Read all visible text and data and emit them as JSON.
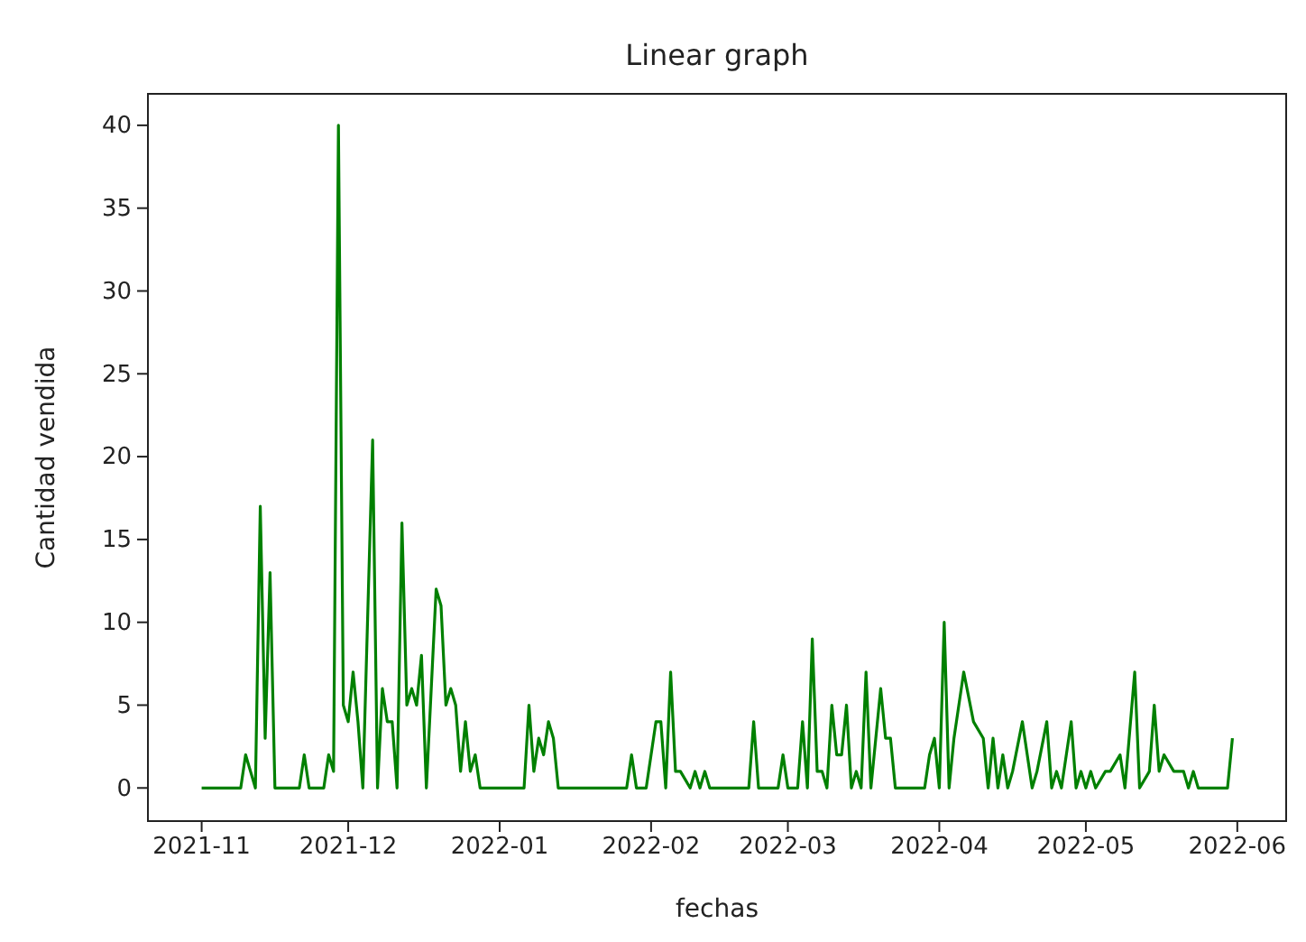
{
  "chart_data": {
    "type": "line",
    "title": "Linear graph",
    "xlabel": "fechas",
    "ylabel": "Cantidad vendida",
    "x": [
      "2021-11-01",
      "2021-11-09",
      "2021-11-10",
      "2021-11-11",
      "2021-11-12",
      "2021-11-13",
      "2021-11-14",
      "2021-11-15",
      "2021-11-16",
      "2021-11-21",
      "2021-11-22",
      "2021-11-23",
      "2021-11-26",
      "2021-11-27",
      "2021-11-28",
      "2021-11-29",
      "2021-11-30",
      "2021-12-01",
      "2021-12-02",
      "2021-12-03",
      "2021-12-04",
      "2021-12-06",
      "2021-12-07",
      "2021-12-08",
      "2021-12-09",
      "2021-12-10",
      "2021-12-11",
      "2021-12-12",
      "2021-12-13",
      "2021-12-14",
      "2021-12-15",
      "2021-12-16",
      "2021-12-17",
      "2021-12-19",
      "2021-12-20",
      "2021-12-21",
      "2021-12-22",
      "2021-12-23",
      "2021-12-24",
      "2021-12-25",
      "2021-12-26",
      "2021-12-27",
      "2021-12-28",
      "2022-01-06",
      "2022-01-07",
      "2022-01-08",
      "2022-01-09",
      "2022-01-10",
      "2022-01-11",
      "2022-01-12",
      "2022-01-13",
      "2022-01-27",
      "2022-01-28",
      "2022-01-29",
      "2022-01-31",
      "2022-02-01",
      "2022-02-02",
      "2022-02-03",
      "2022-02-04",
      "2022-02-05",
      "2022-02-06",
      "2022-02-07",
      "2022-02-09",
      "2022-02-10",
      "2022-02-11",
      "2022-02-12",
      "2022-02-13",
      "2022-02-21",
      "2022-02-22",
      "2022-02-23",
      "2022-02-27",
      "2022-02-28",
      "2022-03-01",
      "2022-03-03",
      "2022-03-04",
      "2022-03-05",
      "2022-03-06",
      "2022-03-07",
      "2022-03-08",
      "2022-03-09",
      "2022-03-10",
      "2022-03-11",
      "2022-03-12",
      "2022-03-13",
      "2022-03-14",
      "2022-03-15",
      "2022-03-16",
      "2022-03-17",
      "2022-03-18",
      "2022-03-20",
      "2022-03-21",
      "2022-03-22",
      "2022-03-23",
      "2022-03-29",
      "2022-03-30",
      "2022-03-31",
      "2022-04-01",
      "2022-04-02",
      "2022-04-03",
      "2022-04-04",
      "2022-04-06",
      "2022-04-08",
      "2022-04-10",
      "2022-04-11",
      "2022-04-12",
      "2022-04-13",
      "2022-04-14",
      "2022-04-15",
      "2022-04-16",
      "2022-04-18",
      "2022-04-20",
      "2022-04-21",
      "2022-04-23",
      "2022-04-24",
      "2022-04-25",
      "2022-04-26",
      "2022-04-28",
      "2022-04-29",
      "2022-04-30",
      "2022-05-01",
      "2022-05-02",
      "2022-05-03",
      "2022-05-05",
      "2022-05-06",
      "2022-05-08",
      "2022-05-09",
      "2022-05-11",
      "2022-05-12",
      "2022-05-14",
      "2022-05-15",
      "2022-05-16",
      "2022-05-17",
      "2022-05-19",
      "2022-05-21",
      "2022-05-22",
      "2022-05-23",
      "2022-05-24",
      "2022-05-30",
      "2022-05-31"
    ],
    "series": [
      {
        "color": "#008000",
        "values": [
          0,
          0,
          2,
          1,
          0,
          17,
          3,
          13,
          0,
          0,
          2,
          0,
          0,
          2,
          1,
          40,
          5,
          4,
          7,
          4,
          0,
          21,
          0,
          6,
          4,
          4,
          0,
          16,
          5,
          6,
          5,
          8,
          0,
          12,
          11,
          5,
          6,
          5,
          1,
          4,
          1,
          2,
          0,
          0,
          5,
          1,
          3,
          2,
          4,
          3,
          0,
          0,
          2,
          0,
          0,
          2,
          4,
          4,
          0,
          7,
          1,
          1,
          0,
          1,
          0,
          1,
          0,
          0,
          4,
          0,
          0,
          2,
          0,
          0,
          4,
          0,
          9,
          1,
          1,
          0,
          5,
          2,
          2,
          5,
          0,
          1,
          0,
          7,
          0,
          6,
          3,
          3,
          0,
          0,
          2,
          3,
          0,
          10,
          0,
          3,
          7,
          4,
          3,
          0,
          3,
          0,
          2,
          0,
          1,
          4,
          0,
          1,
          4,
          0,
          1,
          0,
          4,
          0,
          1,
          0,
          1,
          0,
          1,
          1,
          2,
          0,
          7,
          0,
          1,
          5,
          1,
          2,
          1,
          1,
          0,
          1,
          0,
          0,
          3
        ]
      }
    ],
    "xlim": [
      "2021-10-21",
      "2022-06-11"
    ],
    "xticks": [
      {
        "value": "2021-11-01",
        "label": "2021-11"
      },
      {
        "value": "2021-12-01",
        "label": "2021-12"
      },
      {
        "value": "2022-01-01",
        "label": "2022-01"
      },
      {
        "value": "2022-02-01",
        "label": "2022-02"
      },
      {
        "value": "2022-03-01",
        "label": "2022-03"
      },
      {
        "value": "2022-04-01",
        "label": "2022-04"
      },
      {
        "value": "2022-05-01",
        "label": "2022-05"
      },
      {
        "value": "2022-06-01",
        "label": "2022-06"
      }
    ],
    "ylim": [
      -2,
      41.9
    ],
    "yticks": [
      0,
      5,
      10,
      15,
      20,
      25,
      30,
      35,
      40
    ],
    "marker": "none",
    "line_style": "solid",
    "grid": false
  }
}
